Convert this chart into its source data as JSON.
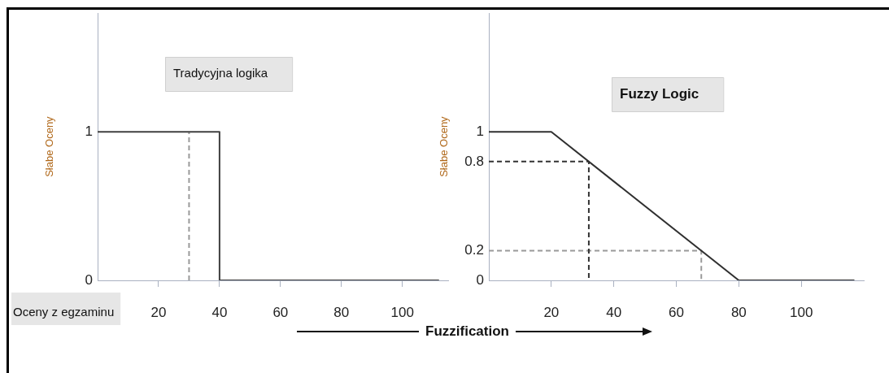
{
  "chart_data": [
    {
      "type": "line",
      "title": "Tradycyjna logika",
      "xlabel": "Oceny z egzaminu",
      "ylabel": "Słabe Oceny",
      "xlim": [
        0,
        115
      ],
      "ylim": [
        0,
        1.8
      ],
      "xticks": [
        20,
        40,
        60,
        80,
        100
      ],
      "yticks": [
        0,
        1
      ],
      "grid": false,
      "legend": false,
      "marker": "none",
      "series": [
        {
          "color": "#404040",
          "line_style": "solid",
          "x": [
            0,
            40,
            40,
            112
          ],
          "values": [
            1,
            1,
            0,
            0
          ]
        },
        {
          "color": "#9a9a9a",
          "line_style": "dashed",
          "x": [
            30,
            30
          ],
          "values": [
            0,
            1
          ]
        }
      ]
    },
    {
      "type": "line",
      "title": "Fuzzy Logic",
      "ylabel": "Słabe Oceny",
      "xlim": [
        0,
        120
      ],
      "ylim": [
        0,
        1.8
      ],
      "xticks": [
        20,
        40,
        60,
        80,
        100
      ],
      "yticks": [
        0,
        0.2,
        0.8,
        1
      ],
      "grid": false,
      "legend": false,
      "marker": "none",
      "annotations": [
        "Fuzzification"
      ],
      "series": [
        {
          "color": "#303030",
          "line_style": "solid",
          "x": [
            0,
            20,
            80,
            117
          ],
          "values": [
            1,
            1,
            0,
            0
          ]
        },
        {
          "color": "#333333",
          "line_style": "dashed",
          "x": [
            0,
            32,
            32
          ],
          "values": [
            0.8,
            0.8,
            0
          ]
        },
        {
          "color": "#9a9a9a",
          "line_style": "dashed",
          "x": [
            0,
            68,
            68
          ],
          "values": [
            0.2,
            0.2,
            0
          ]
        }
      ]
    }
  ]
}
